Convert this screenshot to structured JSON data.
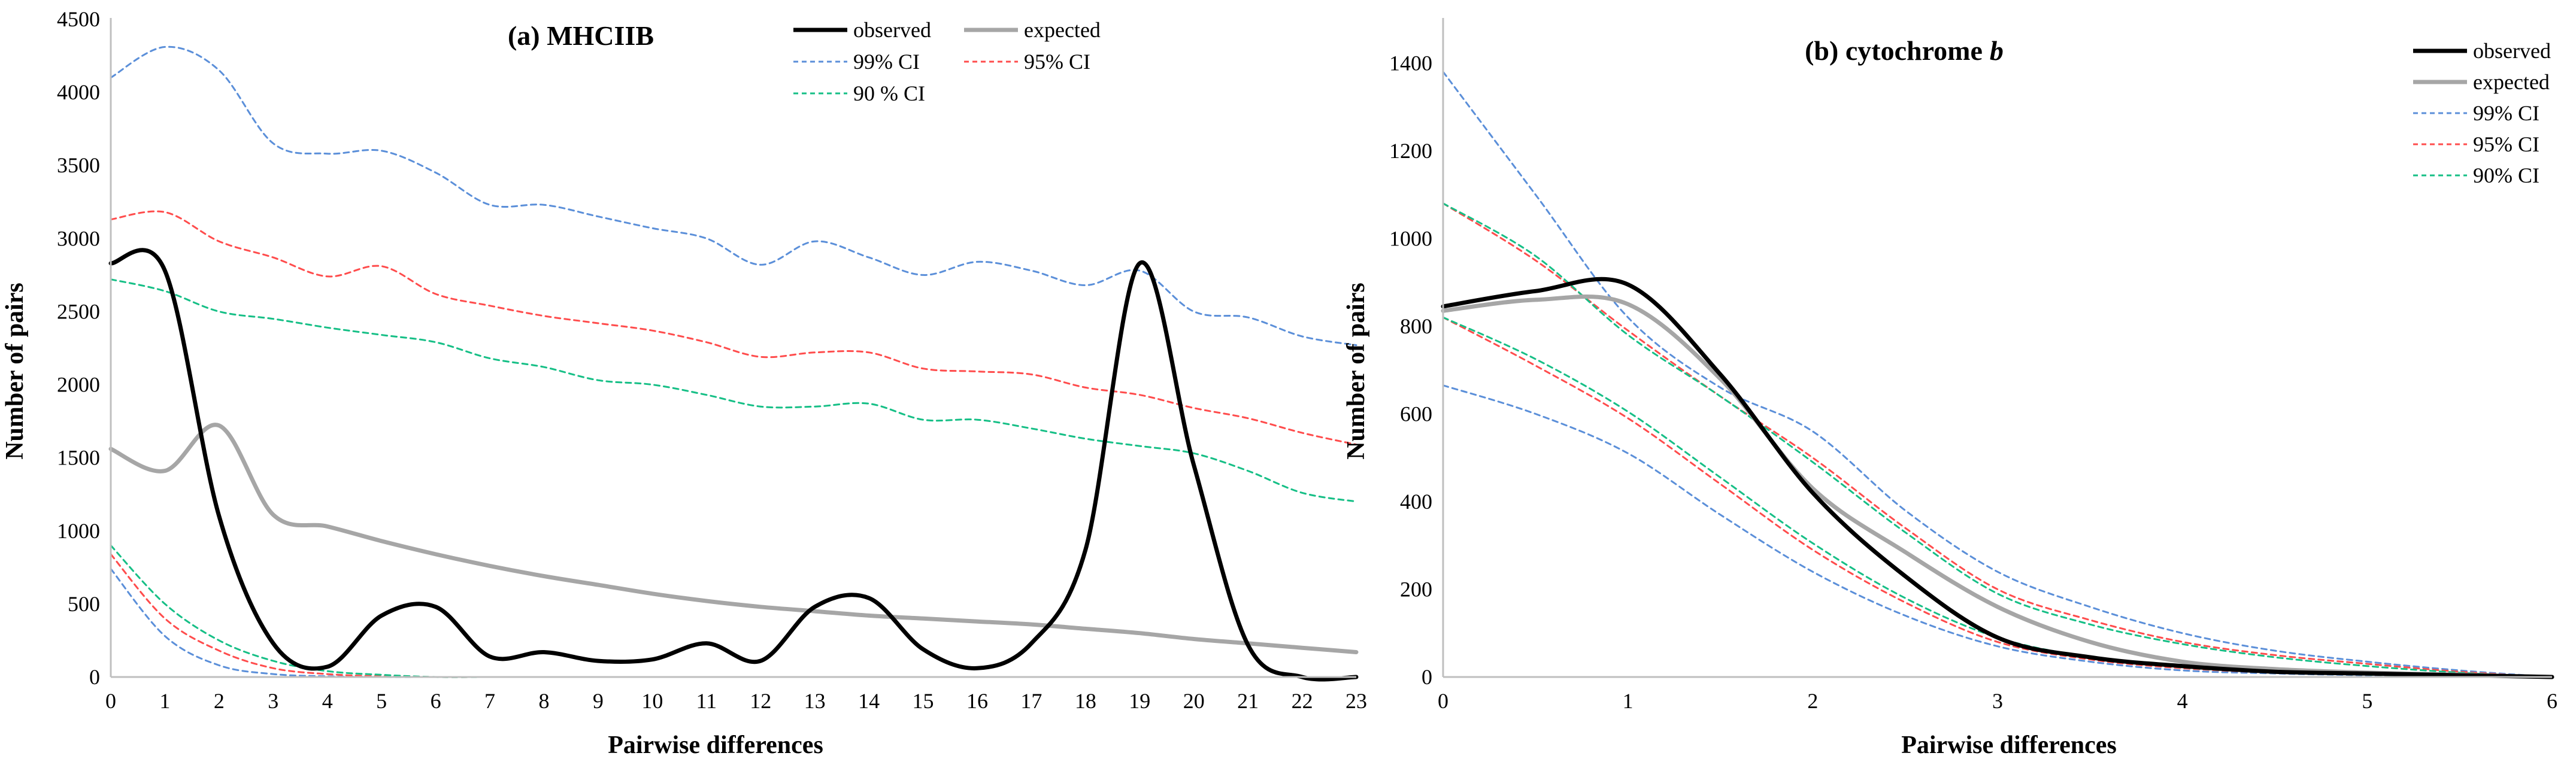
{
  "chart_data": [
    {
      "type": "line",
      "title": "(a) MHCIIB",
      "xlabel": "Pairwise differences",
      "ylabel": "Number of pairs",
      "xlim": [
        0,
        23
      ],
      "ylim": [
        0,
        4500
      ],
      "x_ticks": [
        0,
        1,
        2,
        3,
        4,
        5,
        6,
        7,
        8,
        9,
        10,
        11,
        12,
        13,
        14,
        15,
        16,
        17,
        18,
        19,
        20,
        21,
        22,
        23
      ],
      "y_ticks": [
        0,
        500,
        1000,
        1500,
        2000,
        2500,
        3000,
        3500,
        4000,
        4500
      ],
      "x": [
        0,
        1,
        2,
        3,
        4,
        5,
        6,
        7,
        8,
        9,
        10,
        11,
        12,
        13,
        14,
        15,
        16,
        17,
        18,
        19,
        20,
        21,
        22,
        23
      ],
      "series": [
        {
          "name": "observed",
          "color": "#000000",
          "dash": "solid",
          "values": [
            2830,
            2780,
            1100,
            230,
            70,
            420,
            480,
            140,
            170,
            110,
            120,
            230,
            110,
            480,
            540,
            190,
            60,
            230,
            870,
            2830,
            1450,
            220,
            0,
            0
          ]
        },
        {
          "name": "expected",
          "color": "#a6a6a6",
          "dash": "solid",
          "values": [
            1560,
            1410,
            1720,
            1110,
            1030,
            930,
            840,
            760,
            690,
            630,
            570,
            520,
            480,
            450,
            420,
            400,
            380,
            360,
            330,
            300,
            260,
            230,
            200,
            170
          ]
        },
        {
          "name": "99% CI",
          "color": "#5b8fd9",
          "dash": "dashed",
          "values": [
            4100,
            4310,
            4150,
            3650,
            3580,
            3600,
            3450,
            3230,
            3230,
            3150,
            3070,
            3000,
            2820,
            2980,
            2870,
            2750,
            2840,
            2780,
            2680,
            2780,
            2500,
            2460,
            2330,
            2270
          ]
        },
        {
          "name": "95% CI",
          "color": "#ff4c4c",
          "dash": "dashed",
          "values": [
            3130,
            3180,
            2980,
            2870,
            2740,
            2810,
            2620,
            2540,
            2470,
            2420,
            2370,
            2290,
            2190,
            2220,
            2220,
            2110,
            2090,
            2070,
            1980,
            1930,
            1840,
            1770,
            1670,
            1590
          ]
        },
        {
          "name": "90 % CI",
          "color": "#16bf86",
          "dash": "dashed",
          "values": [
            2720,
            2640,
            2500,
            2450,
            2390,
            2340,
            2290,
            2180,
            2120,
            2030,
            2000,
            1930,
            1850,
            1850,
            1870,
            1760,
            1760,
            1700,
            1630,
            1580,
            1530,
            1410,
            1260,
            1200
          ]
        },
        {
          "name": "99% CI lower",
          "color": "#5b8fd9",
          "dash": "dashed",
          "values": [
            740,
            280,
            80,
            20,
            5,
            0,
            0,
            0,
            0,
            0,
            0,
            0,
            0,
            0,
            0,
            0,
            0,
            0,
            0,
            0,
            0,
            0,
            0,
            0
          ]
        },
        {
          "name": "95% CI lower",
          "color": "#ff4c4c",
          "dash": "dashed",
          "values": [
            840,
            400,
            180,
            60,
            20,
            5,
            0,
            0,
            0,
            0,
            0,
            0,
            0,
            0,
            0,
            0,
            0,
            0,
            0,
            0,
            0,
            0,
            0,
            0
          ]
        },
        {
          "name": "90 % CI lower",
          "color": "#16bf86",
          "dash": "dashed",
          "values": [
            900,
            500,
            250,
            110,
            40,
            15,
            0,
            0,
            0,
            0,
            0,
            0,
            0,
            0,
            0,
            0,
            0,
            0,
            0,
            0,
            0,
            0,
            0,
            0
          ]
        }
      ],
      "legend": [
        "observed",
        "expected",
        "99% CI",
        "95% CI",
        "90 % CI"
      ],
      "legend_position": "top-right"
    },
    {
      "type": "line",
      "title": "(b) cytochrome",
      "title_italic": "b",
      "xlabel": "Pairwise differences",
      "ylabel": "Number of pairs",
      "xlim": [
        0,
        6
      ],
      "ylim": [
        0,
        1500
      ],
      "x_ticks": [
        0,
        1,
        2,
        3,
        4,
        5,
        6
      ],
      "y_ticks": [
        0,
        200,
        400,
        600,
        800,
        1000,
        1200,
        1400
      ],
      "x": [
        0,
        0.5,
        1,
        1.5,
        2,
        2.5,
        3,
        3.5,
        4,
        4.5,
        5,
        5.5,
        6
      ],
      "series": [
        {
          "name": "observed",
          "color": "#000000",
          "dash": "solid",
          "values": [
            845,
            880,
            895,
            690,
            420,
            230,
            90,
            45,
            25,
            12,
            8,
            4,
            0
          ]
        },
        {
          "name": "expected",
          "color": "#a6a6a6",
          "dash": "solid",
          "values": [
            835,
            860,
            850,
            680,
            430,
            285,
            160,
            80,
            35,
            18,
            10,
            5,
            0
          ]
        },
        {
          "name": "99% CI",
          "color": "#5b8fd9",
          "dash": "dashed",
          "values": [
            1380,
            1100,
            820,
            660,
            560,
            380,
            240,
            160,
            100,
            60,
            35,
            15,
            0
          ]
        },
        {
          "name": "95% CI",
          "color": "#ff4c4c",
          "dash": "dashed",
          "values": [
            1080,
            950,
            790,
            640,
            500,
            340,
            200,
            130,
            80,
            50,
            30,
            12,
            0
          ]
        },
        {
          "name": "90% CI",
          "color": "#16bf86",
          "dash": "dashed",
          "values": [
            1080,
            960,
            780,
            640,
            490,
            330,
            190,
            120,
            75,
            45,
            25,
            10,
            0
          ]
        },
        {
          "name": "99% CI lower",
          "color": "#5b8fd9",
          "dash": "dashed",
          "values": [
            665,
            600,
            510,
            370,
            240,
            140,
            70,
            35,
            15,
            8,
            4,
            2,
            0
          ]
        },
        {
          "name": "95% CI lower",
          "color": "#ff4c4c",
          "dash": "dashed",
          "values": [
            820,
            710,
            590,
            440,
            290,
            170,
            80,
            40,
            20,
            10,
            5,
            2,
            0
          ]
        },
        {
          "name": "90% CI lower",
          "color": "#16bf86",
          "dash": "dashed",
          "values": [
            820,
            725,
            605,
            455,
            305,
            180,
            90,
            45,
            22,
            10,
            5,
            2,
            0
          ]
        }
      ],
      "legend": [
        "observed",
        "expected",
        "99% CI",
        "95% CI",
        "90% CI"
      ],
      "legend_position": "top-right"
    }
  ]
}
